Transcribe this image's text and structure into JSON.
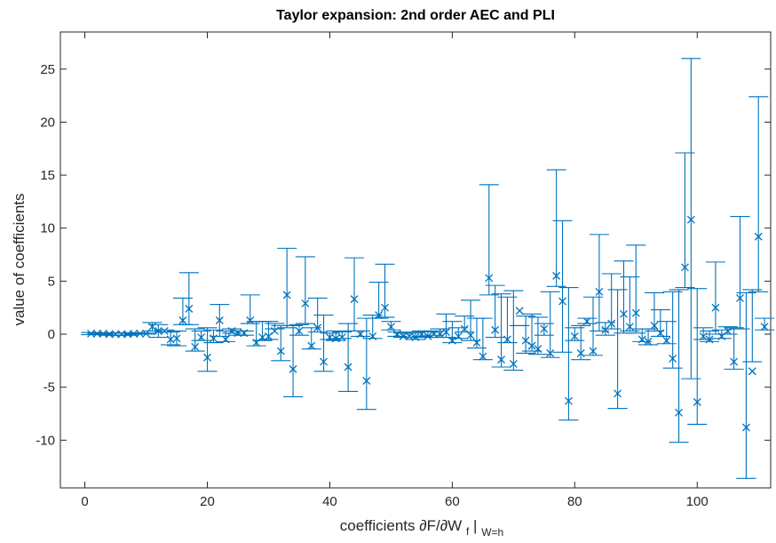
{
  "chart_data": {
    "type": "scatter",
    "title": "Taylor expansion: 2nd order AEC and PLI",
    "xlabel": {
      "main": "coefficients ∂F/∂W",
      "sub1": "f",
      "bar": "|",
      "sub2": "W=h"
    },
    "ylabel": "value of coefficients",
    "xlim": [
      -4,
      112
    ],
    "ylim": [
      -14.5,
      28.5
    ],
    "xticks": [
      0,
      20,
      40,
      60,
      80,
      100
    ],
    "yticks": [
      -10,
      -5,
      0,
      5,
      10,
      15,
      20,
      25
    ],
    "grid": false,
    "color": "#0072BD",
    "marker": "x",
    "series": [
      {
        "x": [
          1,
          2,
          3,
          4,
          5,
          6,
          7,
          8,
          9,
          10,
          11,
          12,
          13,
          14,
          15,
          16,
          17,
          18,
          19,
          20,
          21,
          22,
          23,
          24,
          25,
          26,
          27,
          28,
          29,
          30,
          31,
          32,
          33,
          34,
          35,
          36,
          37,
          38,
          39,
          40,
          41,
          42,
          43,
          44,
          45,
          46,
          47,
          48,
          49,
          50,
          51,
          52,
          53,
          54,
          55,
          56,
          57,
          58,
          59,
          60,
          61,
          62,
          63,
          64,
          65,
          66,
          67,
          68,
          69,
          70,
          71,
          72,
          73,
          74,
          75,
          76,
          77,
          78,
          79,
          80,
          81,
          82,
          83,
          84,
          85,
          86,
          87,
          88,
          89,
          90,
          91,
          92,
          93,
          94,
          95,
          96,
          97,
          98,
          99,
          100,
          101,
          102,
          103,
          104,
          105,
          106,
          107,
          108,
          109,
          110,
          111
        ],
        "y": [
          0.05,
          0.05,
          0.05,
          0.0,
          0.0,
          0.0,
          0.0,
          0.05,
          0.05,
          0.05,
          0.7,
          0.3,
          0.3,
          -0.5,
          -0.4,
          1.3,
          2.4,
          -1.2,
          -0.3,
          -2.2,
          -0.4,
          1.3,
          -0.5,
          0.3,
          0.1,
          0.1,
          1.3,
          -0.8,
          -0.3,
          -0.2,
          0.3,
          -1.6,
          3.7,
          -3.3,
          0.3,
          2.9,
          -1.1,
          0.6,
          -2.6,
          -0.3,
          -0.4,
          -0.3,
          -3.1,
          3.3,
          0.0,
          -4.4,
          -0.2,
          1.8,
          2.5,
          0.7,
          0.0,
          -0.2,
          -0.2,
          -0.3,
          0.0,
          -0.2,
          0.0,
          0.0,
          0.2,
          -0.6,
          -0.2,
          0.5,
          -0.1,
          -0.8,
          -2.1,
          5.3,
          0.4,
          -2.4,
          -0.5,
          -2.8,
          2.2,
          -0.6,
          -1.1,
          -1.4,
          0.5,
          -1.8,
          5.5,
          3.1,
          -6.3,
          -0.2,
          -1.8,
          1.2,
          -1.6,
          4.0,
          0.4,
          1.0,
          -5.6,
          1.9,
          0.7,
          2.0,
          -0.5,
          -0.7,
          0.8,
          0.1,
          -0.6,
          -2.3,
          -7.4,
          6.3,
          10.8,
          -6.4,
          -0.2,
          -0.5,
          2.5,
          -0.2,
          0.3,
          -2.6,
          3.4,
          -8.8,
          -3.5,
          9.2,
          0.7
        ],
        "err_upper": [
          0.15,
          0.1,
          0.1,
          0.1,
          0.1,
          0.1,
          0.1,
          0.1,
          0.1,
          0.1,
          1.1,
          0.9,
          0.4,
          0.2,
          0.3,
          3.4,
          5.8,
          0.5,
          0.3,
          0.6,
          0.4,
          2.8,
          0.3,
          0.5,
          0.3,
          0.3,
          3.7,
          1.2,
          1.2,
          1.2,
          1.0,
          0.8,
          8.1,
          0.8,
          0.9,
          7.3,
          0.6,
          3.4,
          1.8,
          0.1,
          0.3,
          0.2,
          1.0,
          7.2,
          0.3,
          1.5,
          1.8,
          4.9,
          6.6,
          1.2,
          0.2,
          0.1,
          0.1,
          0.2,
          0.3,
          0.2,
          0.3,
          0.5,
          1.9,
          1.2,
          0.6,
          1.7,
          3.2,
          1.5,
          1.5,
          14.1,
          4.6,
          3.8,
          3.5,
          4.1,
          0.8,
          1.7,
          1.9,
          1.6,
          1.0,
          4.0,
          15.5,
          10.7,
          4.4,
          0.6,
          0.8,
          1.5,
          3.5,
          9.4,
          1.1,
          5.7,
          4.2,
          6.9,
          5.4,
          8.4,
          0.5,
          0.5,
          3.9,
          2.3,
          1.2,
          4.0,
          4.2,
          17.1,
          26.0,
          4.3,
          0.6,
          0.3,
          6.8,
          0.4,
          0.7,
          0.6,
          11.1,
          3.9,
          4.2,
          22.4,
          1.5
        ],
        "err_lower": [
          -0.05,
          0.0,
          0.0,
          -0.1,
          -0.1,
          -0.1,
          -0.1,
          0.0,
          0.0,
          0.0,
          0.3,
          -0.3,
          0.2,
          -1.0,
          -1.1,
          0.9,
          0.9,
          -1.6,
          -0.6,
          -3.5,
          -0.8,
          -0.2,
          -0.7,
          0.1,
          -0.1,
          -0.1,
          1.0,
          -1.1,
          -0.6,
          -0.5,
          0.5,
          -2.5,
          0.6,
          -5.9,
          -0.1,
          1.0,
          -1.4,
          0.2,
          -3.5,
          -0.5,
          -0.6,
          -0.4,
          -5.4,
          0.3,
          -0.2,
          -7.1,
          -0.4,
          1.5,
          1.6,
          0.4,
          -0.2,
          -0.3,
          -0.3,
          -0.5,
          -0.2,
          -0.3,
          -0.1,
          -0.3,
          -0.3,
          -0.8,
          -0.4,
          0.2,
          -0.6,
          -1.3,
          -2.4,
          3.7,
          -0.3,
          -3.1,
          -0.8,
          -3.4,
          0.8,
          -1.8,
          -1.6,
          -1.9,
          -0.1,
          -2.2,
          4.5,
          -1.7,
          -8.1,
          -0.6,
          -2.4,
          1.0,
          -2.0,
          0.3,
          -0.1,
          0.5,
          -7.0,
          0.1,
          0.3,
          0.1,
          -0.7,
          -1.0,
          0.3,
          -0.2,
          -0.9,
          -3.2,
          -10.2,
          4.4,
          -4.2,
          -8.5,
          -0.5,
          -0.7,
          0.0,
          -0.4,
          0.0,
          -3.3,
          0.5,
          -13.6,
          -2.6,
          4.0,
          0.4
        ]
      }
    ]
  }
}
